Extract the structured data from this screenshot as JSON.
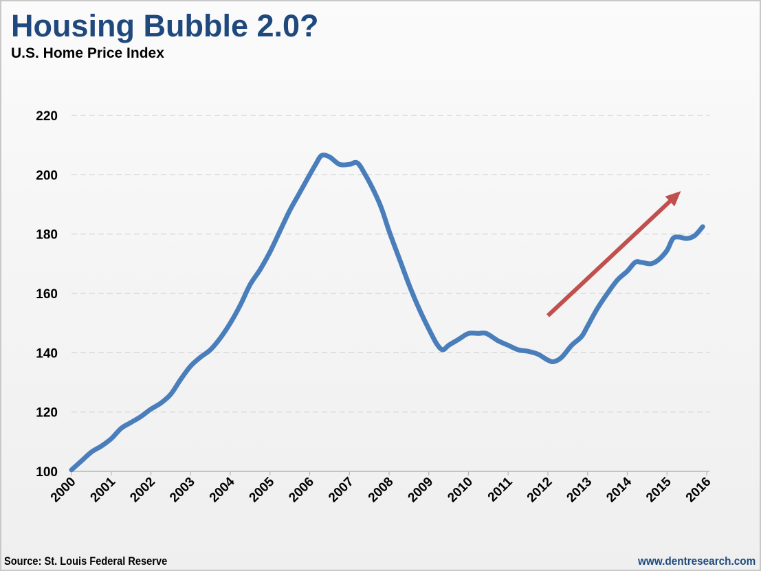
{
  "header": {
    "title": "Housing Bubble 2.0?",
    "subtitle": "U.S. Home Price Index"
  },
  "footer": {
    "source": "Source: St. Louis Federal Reserve",
    "website": "www.dentresearch.com"
  },
  "colors": {
    "title": "#1f497d",
    "series": "#4a7ebb",
    "arrow": "#c0504d",
    "grid": "#cccccc",
    "axis": "#b5b5b5"
  },
  "chart_data": {
    "type": "line",
    "title": "Housing Bubble 2.0?",
    "subtitle": "U.S. Home Price Index",
    "xlabel": "",
    "ylabel": "",
    "xlim": [
      2000,
      2016
    ],
    "ylim": [
      100,
      220
    ],
    "yticks": [
      100,
      120,
      140,
      160,
      180,
      200,
      220
    ],
    "xtick_labels": [
      "2000",
      "2001",
      "2002",
      "2003",
      "2004",
      "2005",
      "2006",
      "2007",
      "2008",
      "2009",
      "2010",
      "2011",
      "2012",
      "2013",
      "2014",
      "2015",
      "2016"
    ],
    "grid": "horizontal-dashed",
    "legend": "none",
    "series": [
      {
        "name": "U.S. Home Price Index",
        "x": [
          2000.0,
          2000.25,
          2000.5,
          2000.75,
          2001.0,
          2001.25,
          2001.5,
          2001.75,
          2002.0,
          2002.25,
          2002.5,
          2002.75,
          2003.0,
          2003.25,
          2003.5,
          2003.75,
          2004.0,
          2004.25,
          2004.5,
          2004.75,
          2005.0,
          2005.25,
          2005.5,
          2005.75,
          2006.0,
          2006.15,
          2006.3,
          2006.5,
          2006.75,
          2007.0,
          2007.2,
          2007.4,
          2007.6,
          2007.8,
          2008.0,
          2008.25,
          2008.5,
          2008.75,
          2009.0,
          2009.2,
          2009.35,
          2009.5,
          2009.75,
          2010.0,
          2010.25,
          2010.45,
          2010.75,
          2011.0,
          2011.25,
          2011.5,
          2011.75,
          2012.0,
          2012.15,
          2012.35,
          2012.6,
          2012.85,
          2013.0,
          2013.25,
          2013.5,
          2013.75,
          2014.0,
          2014.2,
          2014.35,
          2014.6,
          2014.8,
          2015.0,
          2015.15,
          2015.3,
          2015.5,
          2015.7,
          2015.9
        ],
        "values": [
          100.5,
          103.5,
          106.5,
          108.5,
          111,
          114.5,
          116.5,
          118.5,
          121,
          123,
          126,
          131,
          135.5,
          138.5,
          141,
          145,
          150,
          156,
          163,
          168,
          174,
          181,
          188,
          194,
          200,
          203.5,
          206.5,
          206,
          203.5,
          203.5,
          204,
          200,
          195,
          189,
          181,
          172,
          163,
          155,
          148,
          143,
          141,
          142.5,
          144.5,
          146.5,
          146.5,
          146.5,
          144,
          142.5,
          141,
          140.5,
          139.5,
          137.5,
          137,
          138.5,
          142.5,
          145.5,
          149,
          155,
          160,
          164.5,
          167.5,
          170.5,
          170.5,
          170,
          171.5,
          174.5,
          178.5,
          179,
          178.5,
          179.5,
          182.5
        ]
      }
    ],
    "annotations": [
      {
        "type": "arrow",
        "label": "upward trend arrow",
        "from": {
          "x": 2012.0,
          "y": 152.5
        },
        "to": {
          "x": 2015.35,
          "y": 194.5
        }
      }
    ]
  }
}
